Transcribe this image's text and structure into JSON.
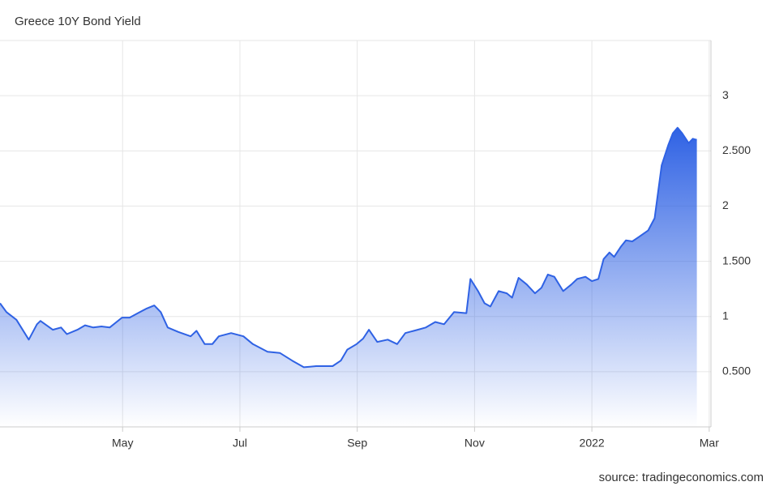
{
  "chart_data": {
    "type": "area",
    "title": "Greece 10Y Bond Yield",
    "source": "source: tradingeconomics.com",
    "x": [
      2.91,
      3.02,
      3.19,
      3.4,
      3.54,
      3.6,
      3.81,
      3.95,
      4.05,
      4.23,
      4.36,
      4.5,
      4.64,
      4.78,
      4.99,
      5.12,
      5.26,
      5.4,
      5.54,
      5.65,
      5.77,
      5.95,
      6.16,
      6.26,
      6.4,
      6.53,
      6.64,
      6.85,
      7.06,
      7.22,
      7.47,
      7.68,
      7.89,
      8.09,
      8.3,
      8.58,
      8.72,
      8.83,
      8.99,
      9.1,
      9.2,
      9.34,
      9.52,
      9.68,
      9.82,
      10.03,
      10.17,
      10.33,
      10.48,
      10.65,
      10.86,
      10.93,
      11.06,
      11.17,
      11.27,
      11.41,
      11.55,
      11.64,
      11.75,
      11.89,
      12.03,
      12.14,
      12.25,
      12.36,
      12.51,
      12.65,
      12.75,
      12.89,
      13.0,
      13.11,
      13.2,
      13.3,
      13.38,
      13.49,
      13.58,
      13.69,
      13.8,
      13.96,
      14.07,
      14.19,
      14.3,
      14.38,
      14.46,
      14.54,
      14.65,
      14.72,
      14.79
    ],
    "series": [
      {
        "name": "Greece 10Y Bond Yield",
        "color": "#2f62e4",
        "values": [
          1.12,
          1.04,
          0.97,
          0.79,
          0.93,
          0.96,
          0.88,
          0.9,
          0.84,
          0.88,
          0.92,
          0.9,
          0.91,
          0.9,
          0.99,
          0.99,
          1.03,
          1.07,
          1.1,
          1.04,
          0.9,
          0.86,
          0.82,
          0.87,
          0.75,
          0.75,
          0.82,
          0.85,
          0.82,
          0.75,
          0.68,
          0.67,
          0.6,
          0.54,
          0.55,
          0.55,
          0.6,
          0.7,
          0.75,
          0.8,
          0.88,
          0.77,
          0.79,
          0.75,
          0.85,
          0.88,
          0.9,
          0.95,
          0.93,
          1.04,
          1.03,
          1.34,
          1.23,
          1.12,
          1.09,
          1.23,
          1.21,
          1.17,
          1.35,
          1.29,
          1.21,
          1.26,
          1.38,
          1.36,
          1.23,
          1.29,
          1.34,
          1.36,
          1.32,
          1.34,
          1.52,
          1.58,
          1.54,
          1.63,
          1.69,
          1.68,
          1.72,
          1.78,
          1.89,
          2.37,
          2.55,
          2.66,
          2.71,
          2.66,
          2.57,
          2.61,
          2.6
        ]
      }
    ],
    "xlim": [
      2.91,
      15.03
    ],
    "xticks": [
      {
        "value": 5,
        "label": "May"
      },
      {
        "value": 7,
        "label": "Jul"
      },
      {
        "value": 9,
        "label": "Sep"
      },
      {
        "value": 11,
        "label": "Nov"
      },
      {
        "value": 13,
        "label": "2022"
      },
      {
        "value": 15,
        "label": "Mar"
      }
    ],
    "ylim": [
      0,
      3.5
    ],
    "yticks": [
      {
        "value": 0.5,
        "label": "0.500"
      },
      1,
      {
        "value": 1.5,
        "label": "1.500"
      },
      2,
      {
        "value": 2.5,
        "label": "2.500"
      },
      3
    ],
    "grid": true
  }
}
